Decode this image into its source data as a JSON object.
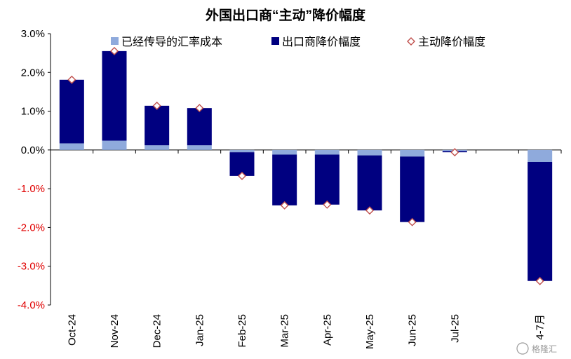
{
  "chart_data": {
    "type": "bar",
    "stacked": true,
    "title": "外国出口商“主动”降价幅度",
    "categories": [
      "Oct-24",
      "Nov-24",
      "Dec-24",
      "Jan-25",
      "Feb-25",
      "Mar-25",
      "Apr-25",
      "May-25",
      "Jun-25",
      "Jul-25",
      "",
      "4-7月"
    ],
    "series": [
      {
        "name": "已经传导的汇率成本",
        "color": "#8faadc",
        "kind": "bar",
        "values": [
          0.17,
          0.24,
          0.12,
          0.12,
          -0.06,
          -0.12,
          -0.12,
          -0.14,
          -0.17,
          -0.03,
          null,
          -0.31
        ]
      },
      {
        "name": "出口商降价幅度",
        "color": "#000080",
        "kind": "bar",
        "values": [
          1.64,
          2.31,
          1.02,
          0.96,
          -0.61,
          -1.31,
          -1.29,
          -1.42,
          -1.69,
          -0.03,
          null,
          -3.07
        ]
      },
      {
        "name": "主动降价幅度",
        "color": "#c0504d",
        "kind": "marker-diamond",
        "values": [
          1.81,
          2.55,
          1.14,
          1.08,
          -0.67,
          -1.43,
          -1.41,
          -1.56,
          -1.86,
          -0.06,
          null,
          -3.38
        ]
      }
    ],
    "ylim": [
      -4.0,
      3.0
    ],
    "yticks": [
      "3.0%",
      "2.0%",
      "1.0%",
      "0.0%",
      "-1.0%",
      "-2.0%",
      "-3.0%",
      "-4.0%"
    ],
    "ytick_values": [
      3,
      2,
      1,
      0,
      -1,
      -2,
      -3,
      -4
    ],
    "negative_tick_color": "#e00000",
    "legend_position": "top",
    "grid": false
  },
  "watermark": "格隆汇"
}
